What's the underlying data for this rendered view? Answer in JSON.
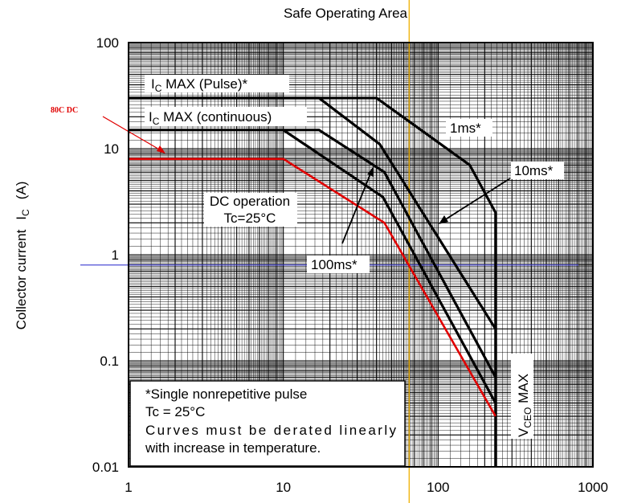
{
  "chart_data": {
    "type": "line",
    "title": "Safe Operating Area",
    "xlabel": "",
    "ylabel": "Collector current",
    "ylabel_symbol": "I",
    "ylabel_subscript": "C",
    "ylabel_unit": "(A)",
    "x_scale": "log",
    "y_scale": "log",
    "xlim": [
      1,
      1000
    ],
    "ylim": [
      0.01,
      100
    ],
    "grid": true,
    "x_ticks": [
      "1",
      "10",
      "100",
      "1000"
    ],
    "y_ticks": [
      "100",
      "10",
      "1",
      "0.1",
      "0.01"
    ],
    "series": [
      {
        "name": "1ms*",
        "color": "#000000",
        "x": [
          1,
          40,
          160,
          235,
          235
        ],
        "y": [
          30,
          30,
          7,
          2.5,
          0.01
        ]
      },
      {
        "name": "10ms*",
        "color": "#000000",
        "x": [
          1,
          17,
          42,
          235
        ],
        "y": [
          30,
          30,
          11,
          0.2
        ]
      },
      {
        "name": "100ms*",
        "color": "#000000",
        "x": [
          1,
          17,
          45,
          235
        ],
        "y": [
          15,
          15,
          6,
          0.07
        ]
      },
      {
        "name": "DC operation",
        "color": "#000000",
        "x": [
          10,
          44,
          235
        ],
        "y": [
          15,
          3.5,
          0.04
        ]
      },
      {
        "name": "80C DC",
        "color": "#e00000",
        "x": [
          1,
          10,
          45,
          235
        ],
        "y": [
          8,
          8,
          2,
          0.03
        ]
      }
    ],
    "reference_lines": [
      {
        "orientation": "vertical",
        "x": 65,
        "color": "#f0b000"
      },
      {
        "orientation": "horizontal",
        "y": 0.8,
        "color": "#3a3ad0"
      }
    ],
    "annotations": {
      "pulse": {
        "prefix": "I",
        "sub": "C",
        "rest": " MAX (Pulse)*"
      },
      "continuous": {
        "prefix": "I",
        "sub": "C",
        "rest": " MAX (continuous)"
      },
      "dc_red": "80C DC",
      "one_ms": "1ms*",
      "ten_ms": "10ms*",
      "hundred_ms": "100ms*",
      "dc_op_line1": "DC operation",
      "dc_op_line2": "Tc=25°C",
      "vceo": {
        "prefix": "V",
        "sub": "CEO",
        "rest": " MAX"
      }
    },
    "note_lines": [
      "*Single nonrepetitive pulse",
      "Tc = 25°C",
      "Curves must be derated linearly",
      "with increase in temperature."
    ]
  }
}
